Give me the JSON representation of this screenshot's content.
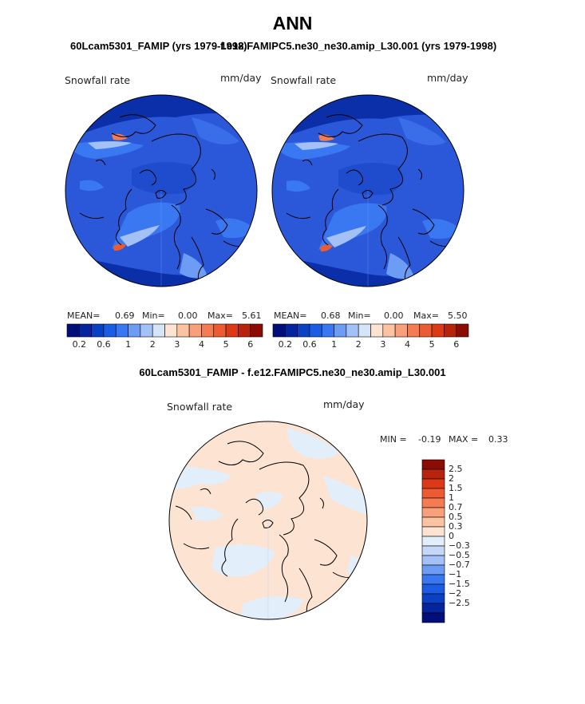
{
  "figure": {
    "title": "ANN",
    "diff_title": "60Lcam5301_FAMIP - f.e12.FAMIPC5.ne30_ne30.amip_L30.001"
  },
  "panels": [
    {
      "case_title": "60Lcam5301_FAMIP (yrs 1979-1998)",
      "variable": "Snowfall rate",
      "units": "mm/day",
      "stats": {
        "mean_label": "MEAN=",
        "mean": "0.69",
        "min_label": "Min=",
        "min": "0.00",
        "max_label": "Max=",
        "max": "5.61"
      }
    },
    {
      "case_title": "f.e12.FAMIPC5.ne30_ne30.amip_L30.001 (yrs 1979-1998)",
      "variable": "Snowfall rate",
      "units": "mm/day",
      "stats": {
        "mean_label": "MEAN=",
        "mean": "0.68",
        "min_label": "Min=",
        "min": "0.00",
        "max_label": "Max=",
        "max": "5.50"
      }
    }
  ],
  "abs_colorbar": {
    "colors": [
      "#000f7a",
      "#05259e",
      "#0a40c4",
      "#1a5ce4",
      "#3a78f2",
      "#6d9cf5",
      "#a3c1f7",
      "#d6e4f9",
      "#fde4d2",
      "#fcc3a3",
      "#f8a07a",
      "#f47b52",
      "#ed5b32",
      "#dc3a17",
      "#b8230b",
      "#8a0c02"
    ],
    "tick_labels": [
      "0.2",
      "0.6",
      "1",
      "2",
      "3",
      "4",
      "5",
      "6"
    ]
  },
  "diff_panel": {
    "variable": "Snowfall rate",
    "units": "mm/day",
    "stats": {
      "min_label": "MIN =",
      "min": "-0.19",
      "max_label": "MAX =",
      "max": "0.33"
    },
    "colorbar": {
      "colors": [
        "#8a0c02",
        "#b8230b",
        "#dc3a17",
        "#ed5b32",
        "#f47b52",
        "#f8a07a",
        "#fcc3a3",
        "#fde4d2",
        "#e3eefb",
        "#c5d8f7",
        "#a3c1f7",
        "#6d9cf5",
        "#3a78f2",
        "#1a5ce4",
        "#0a40c4",
        "#05259e",
        "#000f7a"
      ],
      "tick_labels": [
        "2.5",
        "2",
        "1.5",
        "1",
        "0.7",
        "0.5",
        "0.3",
        "0",
        "−0.3",
        "−0.5",
        "−0.7",
        "−1",
        "−1.5",
        "−2",
        "−2.5"
      ]
    }
  }
}
